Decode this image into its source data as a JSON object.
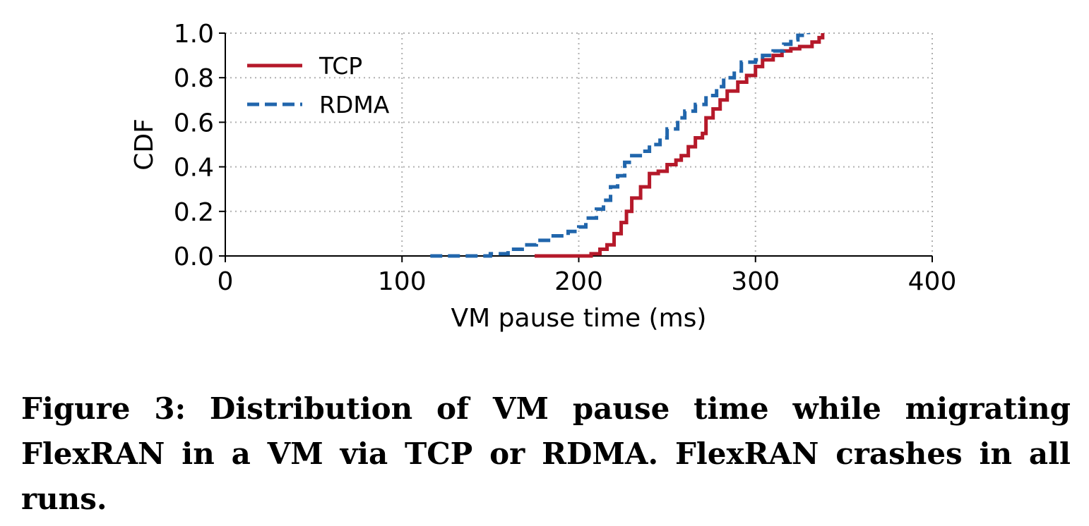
{
  "chart_data": {
    "type": "line",
    "subtype": "step-cdf",
    "xlabel": "VM pause time (ms)",
    "ylabel": "CDF",
    "xlim": [
      0,
      400
    ],
    "ylim": [
      0,
      1
    ],
    "xticks": [
      "0",
      "100",
      "200",
      "300",
      "400"
    ],
    "yticks": [
      "0.0",
      "0.2",
      "0.4",
      "0.6",
      "0.8",
      "1.0"
    ],
    "grid": true,
    "legend_position": "upper-left",
    "series": [
      {
        "name": "TCP",
        "color": "#b5192a",
        "style": "solid",
        "points": [
          [
            175,
            0.0
          ],
          [
            200,
            0.0
          ],
          [
            207,
            0.01
          ],
          [
            212,
            0.03
          ],
          [
            216,
            0.05
          ],
          [
            220,
            0.1
          ],
          [
            224,
            0.15
          ],
          [
            227,
            0.2
          ],
          [
            230,
            0.26
          ],
          [
            235,
            0.31
          ],
          [
            240,
            0.37
          ],
          [
            245,
            0.38
          ],
          [
            250,
            0.41
          ],
          [
            255,
            0.43
          ],
          [
            258,
            0.45
          ],
          [
            262,
            0.49
          ],
          [
            266,
            0.53
          ],
          [
            270,
            0.55
          ],
          [
            272,
            0.62
          ],
          [
            276,
            0.66
          ],
          [
            280,
            0.7
          ],
          [
            284,
            0.74
          ],
          [
            290,
            0.78
          ],
          [
            295,
            0.81
          ],
          [
            300,
            0.85
          ],
          [
            304,
            0.88
          ],
          [
            310,
            0.9
          ],
          [
            315,
            0.92
          ],
          [
            320,
            0.93
          ],
          [
            325,
            0.94
          ],
          [
            332,
            0.96
          ],
          [
            336,
            0.98
          ],
          [
            338,
            1.0
          ]
        ]
      },
      {
        "name": "RDMA",
        "color": "#2166ac",
        "style": "dashed",
        "points": [
          [
            116,
            0.0
          ],
          [
            150,
            0.01
          ],
          [
            160,
            0.03
          ],
          [
            168,
            0.05
          ],
          [
            176,
            0.07
          ],
          [
            184,
            0.09
          ],
          [
            194,
            0.11
          ],
          [
            200,
            0.13
          ],
          [
            204,
            0.17
          ],
          [
            210,
            0.21
          ],
          [
            214,
            0.25
          ],
          [
            218,
            0.31
          ],
          [
            222,
            0.36
          ],
          [
            226,
            0.42
          ],
          [
            230,
            0.45
          ],
          [
            236,
            0.47
          ],
          [
            240,
            0.5
          ],
          [
            246,
            0.53
          ],
          [
            250,
            0.57
          ],
          [
            256,
            0.62
          ],
          [
            260,
            0.65
          ],
          [
            266,
            0.68
          ],
          [
            272,
            0.72
          ],
          [
            278,
            0.76
          ],
          [
            282,
            0.8
          ],
          [
            288,
            0.83
          ],
          [
            292,
            0.87
          ],
          [
            300,
            0.88
          ],
          [
            304,
            0.9
          ],
          [
            310,
            0.92
          ],
          [
            316,
            0.95
          ],
          [
            320,
            0.97
          ],
          [
            324,
            0.99
          ],
          [
            330,
            1.0
          ]
        ]
      }
    ]
  },
  "caption": "Figure 3: Distribution of VM pause time while migrating FlexRAN in a VM via TCP or RDMA. FlexRAN crashes in all runs."
}
